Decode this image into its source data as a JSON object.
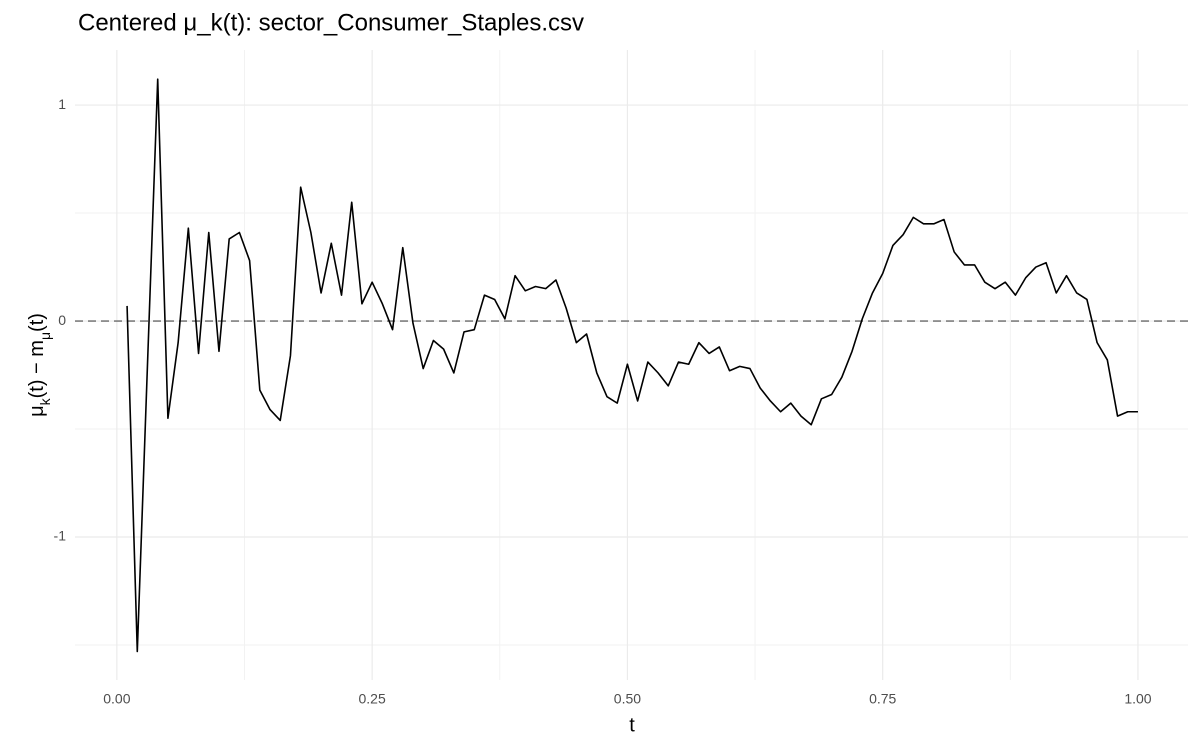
{
  "chart_data": {
    "type": "line",
    "title": "Centered μ_k(t): sector_Consumer_Staples.csv",
    "xlabel": "t",
    "ylabel": [
      {
        "text": "μ"
      },
      {
        "text": "k",
        "sub": true
      },
      {
        "text": "(t) − m"
      },
      {
        "text": "μ",
        "sub": true
      },
      {
        "text": "(t)"
      }
    ],
    "x": [
      0.01,
      0.02,
      0.03,
      0.04,
      0.05,
      0.06,
      0.07,
      0.08,
      0.09,
      0.1,
      0.11,
      0.12,
      0.13,
      0.14,
      0.15,
      0.16,
      0.17,
      0.18,
      0.19,
      0.2,
      0.21,
      0.22,
      0.23,
      0.24,
      0.25,
      0.26,
      0.27,
      0.28,
      0.29,
      0.3,
      0.31,
      0.32,
      0.33,
      0.34,
      0.35,
      0.36,
      0.37,
      0.38,
      0.39,
      0.4,
      0.41,
      0.42,
      0.43,
      0.44,
      0.45,
      0.46,
      0.47,
      0.48,
      0.49,
      0.5,
      0.51,
      0.52,
      0.53,
      0.54,
      0.55,
      0.56,
      0.57,
      0.58,
      0.59,
      0.6,
      0.61,
      0.62,
      0.63,
      0.64,
      0.65,
      0.66,
      0.67,
      0.68,
      0.69,
      0.7,
      0.71,
      0.72,
      0.73,
      0.74,
      0.75,
      0.76,
      0.77,
      0.78,
      0.79,
      0.8,
      0.81,
      0.82,
      0.83,
      0.84,
      0.85,
      0.86,
      0.87,
      0.88,
      0.89,
      0.9,
      0.91,
      0.92,
      0.93,
      0.94,
      0.95,
      0.96,
      0.97,
      0.98,
      0.99,
      1.0
    ],
    "series": [
      {
        "color": "#000000",
        "values": [
          0.07,
          -1.53,
          -0.2,
          1.12,
          -0.45,
          -0.1,
          0.43,
          -0.15,
          0.41,
          -0.14,
          0.38,
          0.41,
          0.28,
          -0.32,
          -0.41,
          -0.46,
          -0.16,
          0.62,
          0.41,
          0.13,
          0.36,
          0.12,
          0.55,
          0.08,
          0.18,
          0.08,
          -0.04,
          0.34,
          -0.01,
          -0.22,
          -0.09,
          -0.13,
          -0.24,
          -0.05,
          -0.04,
          0.12,
          0.1,
          0.01,
          0.21,
          0.14,
          0.16,
          0.15,
          0.19,
          0.06,
          -0.1,
          -0.06,
          -0.24,
          -0.35,
          -0.38,
          -0.2,
          -0.37,
          -0.19,
          -0.24,
          -0.3,
          -0.19,
          -0.2,
          -0.1,
          -0.15,
          -0.12,
          -0.23,
          -0.21,
          -0.22,
          -0.31,
          -0.37,
          -0.42,
          -0.38,
          -0.44,
          -0.48,
          -0.36,
          -0.34,
          -0.26,
          -0.14,
          0.01,
          0.13,
          0.22,
          0.35,
          0.4,
          0.48,
          0.45,
          0.45,
          0.47,
          0.32,
          0.26,
          0.26,
          0.18,
          0.15,
          0.18,
          0.12,
          0.2,
          0.25,
          0.27,
          0.13,
          0.21,
          0.13,
          0.1,
          -0.1,
          -0.18,
          -0.44,
          -0.42,
          -0.42
        ]
      }
    ],
    "hline": 0,
    "xlim": [
      -0.041,
      1.049
    ],
    "ylim": [
      -1.662,
      1.255
    ],
    "xticks": [
      {
        "value": 0,
        "label": "0.00"
      },
      {
        "value": 0.25,
        "label": "0.25"
      },
      {
        "value": 0.5,
        "label": "0.50"
      },
      {
        "value": 0.75,
        "label": "0.75"
      },
      {
        "value": 1,
        "label": "1.00"
      }
    ],
    "yticks": [
      -1,
      0,
      1
    ],
    "grid": true
  }
}
